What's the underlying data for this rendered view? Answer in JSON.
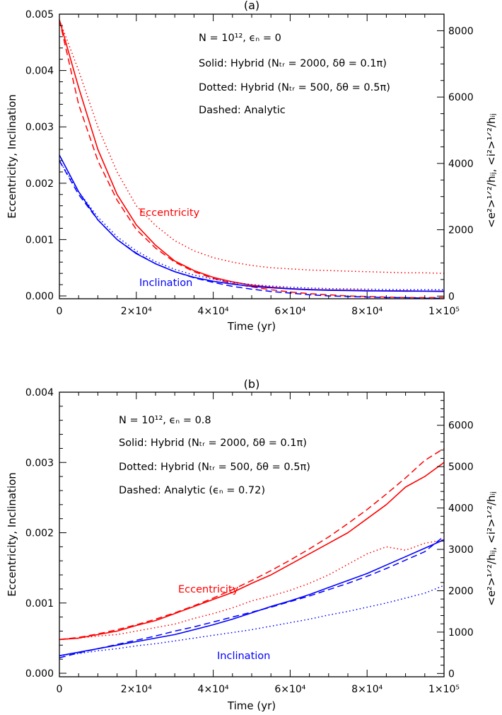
{
  "chart_data": [
    {
      "type": "line",
      "panel": "(a)",
      "xlabel": "Time (yr)",
      "ylabel": "Eccentricity, Inclination",
      "y2label": "<e²>¹ᐟ²/hᵢⱼ, <i²>¹ᐟ²/hᵢⱼ",
      "xlim": [
        0,
        100000
      ],
      "ylim": [
        -5e-05,
        0.005
      ],
      "y2lim": [
        -80,
        8500
      ],
      "xticks": [
        0,
        20000,
        40000,
        60000,
        80000,
        100000
      ],
      "xticklabels": [
        "0",
        "2×10⁴",
        "4×10⁴",
        "6×10⁴",
        "8×10⁴",
        "1×10⁵"
      ],
      "yticks": [
        0,
        0.001,
        0.002,
        0.003,
        0.004,
        0.005
      ],
      "yticklabels": [
        "0.000",
        "0.001",
        "0.002",
        "0.003",
        "0.004",
        "0.005"
      ],
      "y2ticks": [
        0,
        2000,
        4000,
        6000,
        8000
      ],
      "y2ticklabels": [
        "0",
        "2000",
        "4000",
        "6000",
        "8000"
      ],
      "annotations": [
        "N = 10¹², ϵₙ = 0",
        "Solid: Hybrid (Nₜᵣ = 2000, δθ = 0.1π)",
        "Dotted: Hybrid (Nₜᵣ = 500, δθ = 0.5π)",
        "Dashed: Analytic"
      ],
      "labels": [
        {
          "text": "Eccentricity",
          "color": "#ff0000"
        },
        {
          "text": "Inclination",
          "color": "#0000ff"
        }
      ],
      "x": [
        0,
        5000,
        10000,
        15000,
        20000,
        25000,
        30000,
        35000,
        40000,
        45000,
        50000,
        55000,
        60000,
        65000,
        70000,
        75000,
        80000,
        85000,
        90000,
        95000,
        100000
      ],
      "series": [
        {
          "color": "#ff0000",
          "style": "solid",
          "values": [
            0.0049,
            0.0037,
            0.0026,
            0.0018,
            0.00126,
            0.0009,
            0.00062,
            0.00045,
            0.00033,
            0.00025,
            0.00019,
            0.000155,
            0.00013,
            0.000115,
            0.000105,
            0.0001,
            9.5e-05,
            9e-05,
            9e-05,
            8.5e-05,
            8.5e-05
          ]
        },
        {
          "color": "#ff0000",
          "style": "dashed",
          "values": [
            0.0049,
            0.0034,
            0.0024,
            0.0017,
            0.00118,
            0.00085,
            0.0006,
            0.00043,
            0.00031,
            0.00022,
            0.00016,
            0.00011,
            7e-05,
            4e-05,
            2e-05,
            0.0,
            -1e-05,
            -2e-05,
            -3e-05,
            -3e-05,
            -3e-05
          ]
        },
        {
          "color": "#ff0000",
          "style": "dotted",
          "values": [
            0.0049,
            0.004,
            0.003,
            0.0022,
            0.0016,
            0.00125,
            0.00098,
            0.0008,
            0.00068,
            0.0006,
            0.00054,
            0.0005,
            0.00048,
            0.00046,
            0.00045,
            0.00044,
            0.00043,
            0.00042,
            0.00041,
            0.00041,
            0.0004
          ]
        },
        {
          "color": "#0000ff",
          "style": "solid",
          "values": [
            0.0025,
            0.00185,
            0.00135,
            0.001,
            0.00075,
            0.00057,
            0.00043,
            0.00033,
            0.00026,
            0.00021,
            0.00017,
            0.000145,
            0.000125,
            0.00011,
            0.0001,
            9.5e-05,
            9e-05,
            9e-05,
            8.5e-05,
            8.5e-05,
            8e-05
          ]
        },
        {
          "color": "#0000ff",
          "style": "dashed",
          "values": [
            0.0024,
            0.0018,
            0.00135,
            0.001,
            0.00076,
            0.00057,
            0.00043,
            0.00032,
            0.00024,
            0.00017,
            0.00012,
            8e-05,
            5e-05,
            2e-05,
            0.0,
            -1e-05,
            -2e-05,
            -3e-05,
            -3e-05,
            -4e-05,
            -4e-05
          ]
        },
        {
          "color": "#0000ff",
          "style": "dotted",
          "values": [
            0.0024,
            0.00185,
            0.0014,
            0.00105,
            0.0008,
            0.00061,
            0.00047,
            0.00037,
            0.0003,
            0.00024,
            0.0002,
            0.000175,
            0.000155,
            0.00014,
            0.00013,
            0.000125,
            0.00012,
            0.000115,
            0.00011,
            0.00011,
            0.00011
          ]
        }
      ]
    },
    {
      "type": "line",
      "panel": "(b)",
      "xlabel": "Time (yr)",
      "ylabel": "Eccentricity, Inclination",
      "y2label": "<e²>¹ᐟ²/hᵢⱼ, <i²>¹ᐟ²/hᵢⱼ",
      "xlim": [
        0,
        100000
      ],
      "ylim": [
        -5e-05,
        0.004
      ],
      "y2lim": [
        -80,
        6800
      ],
      "xticks": [
        0,
        20000,
        40000,
        60000,
        80000,
        100000
      ],
      "xticklabels": [
        "0",
        "2×10⁴",
        "4×10⁴",
        "6×10⁴",
        "8×10⁴",
        "1×10⁵"
      ],
      "yticks": [
        0,
        0.001,
        0.002,
        0.003,
        0.004
      ],
      "yticklabels": [
        "0.000",
        "0.001",
        "0.002",
        "0.003",
        "0.004"
      ],
      "y2ticks": [
        0,
        1000,
        2000,
        3000,
        4000,
        5000,
        6000
      ],
      "y2ticklabels": [
        "0",
        "1000",
        "2000",
        "3000",
        "4000",
        "5000",
        "6000"
      ],
      "annotations": [
        "N = 10¹², ϵₙ = 0.8",
        "Solid: Hybrid (Nₜᵣ = 2000, δθ = 0.1π)",
        "Dotted: Hybrid (Nₜᵣ = 500, δθ = 0.5π)",
        "Dashed: Analytic (ϵₙ = 0.72)"
      ],
      "labels": [
        {
          "text": "Eccentricity",
          "color": "#ff0000"
        },
        {
          "text": "Inclination",
          "color": "#0000ff"
        }
      ],
      "x": [
        0,
        5000,
        10000,
        15000,
        20000,
        25000,
        30000,
        35000,
        40000,
        45000,
        50000,
        55000,
        60000,
        65000,
        70000,
        75000,
        80000,
        85000,
        90000,
        95000,
        100000
      ],
      "series": [
        {
          "color": "#ff0000",
          "style": "solid",
          "values": [
            0.00048,
            0.0005,
            0.00055,
            0.0006,
            0.00068,
            0.00075,
            0.00085,
            0.00095,
            0.00105,
            0.00115,
            0.00128,
            0.0014,
            0.00155,
            0.0017,
            0.00185,
            0.002,
            0.0022,
            0.0024,
            0.00265,
            0.0028,
            0.003
          ]
        },
        {
          "color": "#ff0000",
          "style": "dashed",
          "values": [
            0.00048,
            0.00051,
            0.00056,
            0.00062,
            0.00069,
            0.00077,
            0.00086,
            0.00096,
            0.00107,
            0.00119,
            0.00132,
            0.00146,
            0.00161,
            0.00177,
            0.00194,
            0.00213,
            0.00233,
            0.00255,
            0.00278,
            0.00303,
            0.0032
          ]
        },
        {
          "color": "#ff0000",
          "style": "dotted",
          "values": [
            0.00048,
            0.0005,
            0.00053,
            0.00055,
            0.0006,
            0.00065,
            0.0007,
            0.00078,
            0.00085,
            0.00093,
            0.00103,
            0.0011,
            0.00118,
            0.00128,
            0.0014,
            0.00155,
            0.0017,
            0.0018,
            0.00175,
            0.00185,
            0.0019
          ]
        },
        {
          "color": "#0000ff",
          "style": "solid",
          "values": [
            0.00025,
            0.0003,
            0.00035,
            0.0004,
            0.00045,
            0.0005,
            0.00055,
            0.00062,
            0.00069,
            0.00077,
            0.00086,
            0.00095,
            0.00103,
            0.00112,
            0.00122,
            0.00132,
            0.00142,
            0.00154,
            0.00166,
            0.00178,
            0.0019
          ]
        },
        {
          "color": "#0000ff",
          "style": "dashed",
          "values": [
            0.00022,
            0.00029,
            0.00035,
            0.00041,
            0.00047,
            0.00053,
            0.0006,
            0.00066,
            0.00073,
            0.0008,
            0.00087,
            0.00094,
            0.00102,
            0.0011,
            0.00119,
            0.00128,
            0.00138,
            0.00149,
            0.00161,
            0.00173,
            0.00195
          ]
        },
        {
          "color": "#0000ff",
          "style": "dotted",
          "values": [
            0.00025,
            0.00028,
            0.00032,
            0.00035,
            0.00039,
            0.00042,
            0.00046,
            0.0005,
            0.00054,
            0.00058,
            0.00062,
            0.00067,
            0.00072,
            0.00077,
            0.00083,
            0.00088,
            0.00094,
            0.001,
            0.00107,
            0.00114,
            0.00125
          ]
        }
      ]
    }
  ]
}
